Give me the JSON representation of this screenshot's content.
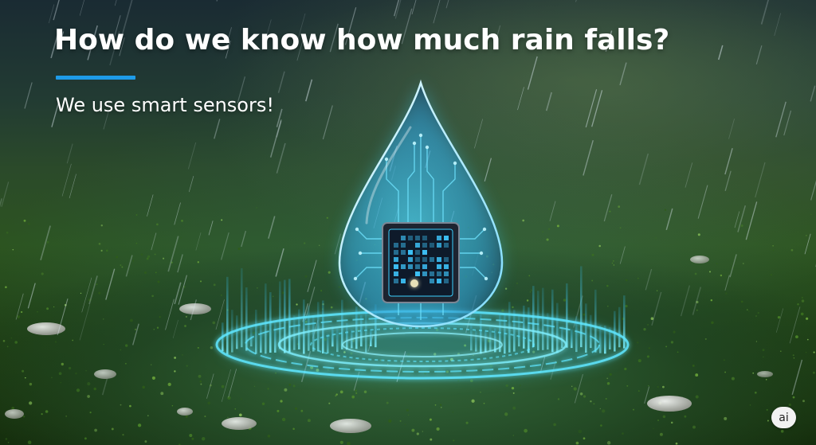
{
  "slide": {
    "title": "How do we know how much rain falls?",
    "subtitle": "We use smart sensors!",
    "badge": "ai"
  },
  "illustration": {
    "subject": "water-drop-icon",
    "chip": "microchip-icon",
    "elements": [
      "rain-streaks",
      "grass-field",
      "pebbles",
      "glowing-rings",
      "signal-bars"
    ]
  },
  "colors": {
    "accent": "#1e9be8",
    "glow": "#4fe6ff",
    "title_text": "#ffffff",
    "grass": "#2c5420"
  }
}
